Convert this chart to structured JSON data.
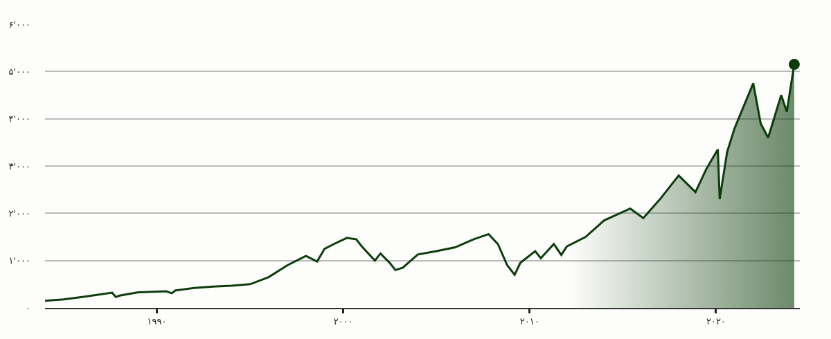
{
  "chart_data": {
    "type": "area",
    "xlim": [
      1984,
      2024.5
    ],
    "xticks": [
      {
        "value": 1990,
        "label": "۱۹۹۰"
      },
      {
        "value": 2000,
        "label": "۲۰۰۰"
      },
      {
        "value": 2010,
        "label": "۲۰۱۰"
      },
      {
        "value": 2020,
        "label": "۲۰۲۰"
      }
    ],
    "ylim": [
      0,
      6000
    ],
    "yticks": [
      {
        "value": 0,
        "label": "۰"
      },
      {
        "value": 1000,
        "label": "۱'۰۰۰"
      },
      {
        "value": 2000,
        "label": "۲'۰۰۰"
      },
      {
        "value": 3000,
        "label": "۳'۰۰۰"
      },
      {
        "value": 4000,
        "label": "۴'۰۰۰"
      },
      {
        "value": 5000,
        "label": "۵'۰۰۰"
      },
      {
        "value": 6000,
        "label": "۶'۰۰۰"
      }
    ],
    "grid": "y",
    "series": [
      {
        "color": "#0b3d0b",
        "x": [
          1984.0,
          1985.0,
          1986.0,
          1987.6,
          1987.8,
          1988.0,
          1989.0,
          1990.5,
          1990.8,
          1991.0,
          1992.0,
          1993.0,
          1994.0,
          1995.0,
          1996.0,
          1997.0,
          1998.0,
          1998.6,
          1999.0,
          1999.5,
          2000.2,
          2000.7,
          2001.0,
          2001.7,
          2002.0,
          2002.5,
          2002.8,
          2003.2,
          2004.0,
          2005.0,
          2006.0,
          2007.0,
          2007.8,
          2008.3,
          2008.8,
          2009.2,
          2009.5,
          2010.3,
          2010.6,
          2011.3,
          2011.7,
          2012.0,
          2013.0,
          2014.0,
          2015.4,
          2016.1,
          2017.0,
          2018.0,
          2018.9,
          2019.5,
          2020.1,
          2020.2,
          2020.6,
          2021.0,
          2022.0,
          2022.4,
          2022.8,
          2023.5,
          2023.8,
          2024.2
        ],
        "values": [
          150,
          180,
          230,
          320,
          230,
          260,
          330,
          350,
          310,
          370,
          420,
          450,
          470,
          500,
          650,
          900,
          1100,
          980,
          1250,
          1350,
          1480,
          1450,
          1300,
          1000,
          1150,
          950,
          800,
          850,
          1130,
          1200,
          1280,
          1450,
          1560,
          1350,
          900,
          700,
          950,
          1200,
          1050,
          1350,
          1120,
          1300,
          1500,
          1850,
          2100,
          1900,
          2300,
          2800,
          2450,
          2950,
          3350,
          2300,
          3300,
          3800,
          4750,
          3900,
          3600,
          4500,
          4150,
          5150
        ]
      },
      {
        "type": "scatter",
        "marker": "circle",
        "color": "#0b3d0b",
        "x": [
          2024.2
        ],
        "values": [
          5150
        ]
      }
    ]
  }
}
